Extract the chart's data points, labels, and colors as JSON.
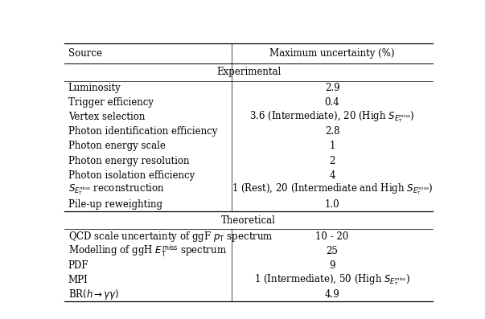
{
  "col_header_left": "Source",
  "col_header_right": "Maximum uncertainty (%)",
  "section1_title": "Experimental",
  "section1_rows": [
    [
      "Luminosity",
      "2.9"
    ],
    [
      "Trigger efficiency",
      "0.4"
    ],
    [
      "Vertex selection",
      "3.6 (Intermediate), 20 (High $S_{E_{\\mathrm{T}}^{\\mathrm{miss}}}$)"
    ],
    [
      "Photon identification efficiency",
      "2.8"
    ],
    [
      "Photon energy scale",
      "1"
    ],
    [
      "Photon energy resolution",
      "2"
    ],
    [
      "Photon isolation efficiency",
      "4"
    ],
    [
      "$S_{E_{\\mathrm{T}}^{\\mathrm{miss}}}$ reconstruction",
      "1 (Rest), 20 (Intermediate and High $S_{E_{\\mathrm{T}}^{\\mathrm{miss}}}$)"
    ],
    [
      "Pile-up reweighting",
      "1.0"
    ]
  ],
  "section2_title": "Theoretical",
  "section2_rows": [
    [
      "QCD scale uncertainty of ggF $p_{\\mathrm{T}}$ spectrum",
      "10 - 20"
    ],
    [
      "Modelling of ggH $E_{\\mathrm{T}}^{\\mathrm{miss}}$ spectrum",
      "25"
    ],
    [
      "PDF",
      "9"
    ],
    [
      "MPI",
      "1 (Intermediate), 50 (High $S_{E_{\\mathrm{T}}^{\\mathrm{miss}}}$)"
    ],
    [
      "BR$(h \\rightarrow \\gamma\\gamma)$",
      "4.9"
    ]
  ],
  "col_split": 0.455,
  "bg_color": "#ffffff",
  "text_color": "#000000",
  "font_size": 8.5
}
